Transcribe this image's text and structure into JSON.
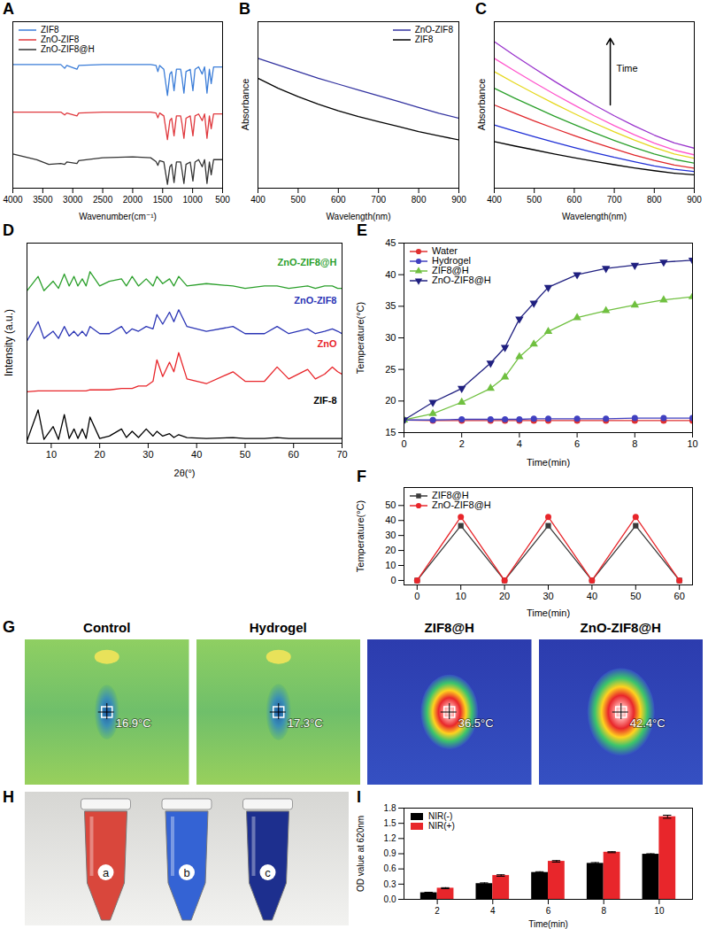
{
  "chart_data": [
    {
      "panel": "A",
      "type": "line",
      "x_label": "Wavenumber(cm⁻¹)",
      "x": [
        4000,
        3600,
        3400,
        3200,
        3135,
        3100,
        2930,
        2900,
        2500,
        2000,
        1700,
        1610,
        1580,
        1550,
        1480,
        1420,
        1380,
        1350,
        1310,
        1270,
        1200,
        1180,
        1145,
        1110,
        1040,
        995,
        960,
        900,
        840,
        800,
        760,
        720,
        690,
        650,
        600,
        500
      ],
      "series": [
        {
          "name": "ZIF8",
          "color": "#3b7dd8",
          "values": [
            2.6,
            2.6,
            2.6,
            2.6,
            2.52,
            2.58,
            2.5,
            2.58,
            2.6,
            2.6,
            2.6,
            2.58,
            2.45,
            2.58,
            2.5,
            1.95,
            2.4,
            2.45,
            2.05,
            2.5,
            2.5,
            2.35,
            2.0,
            2.45,
            2.5,
            2.05,
            2.5,
            2.55,
            2.4,
            2.55,
            2.0,
            2.5,
            2.2,
            2.55,
            2.55,
            2.55
          ]
        },
        {
          "name": "ZnO-ZIF8",
          "color": "#e0393e",
          "values": [
            1.6,
            1.6,
            1.6,
            1.6,
            1.54,
            1.58,
            1.52,
            1.58,
            1.6,
            1.6,
            1.6,
            1.58,
            1.48,
            1.58,
            1.52,
            1.02,
            1.42,
            1.47,
            1.1,
            1.52,
            1.52,
            1.38,
            1.05,
            1.47,
            1.52,
            1.1,
            1.52,
            1.56,
            1.42,
            1.56,
            1.05,
            1.52,
            1.25,
            1.56,
            1.56,
            1.56
          ]
        },
        {
          "name": "ZnO-ZIF8@H",
          "color": "#333333",
          "values": [
            0.72,
            0.6,
            0.5,
            0.52,
            0.5,
            0.55,
            0.52,
            0.58,
            0.64,
            0.66,
            0.64,
            0.56,
            0.48,
            0.58,
            0.55,
            0.08,
            0.45,
            0.5,
            0.12,
            0.55,
            0.55,
            0.4,
            0.1,
            0.5,
            0.55,
            0.15,
            0.55,
            0.6,
            0.45,
            0.6,
            0.1,
            0.55,
            0.28,
            0.6,
            0.6,
            0.6
          ]
        }
      ],
      "xlim": [
        4000,
        500
      ],
      "xticks": [
        4000,
        3500,
        3000,
        2500,
        2000,
        1500,
        1000,
        500
      ],
      "ylim": [
        0,
        3.5
      ],
      "yticks": [],
      "tick_labels": "x",
      "legend": "top-left"
    },
    {
      "panel": "B",
      "type": "line",
      "x_label": "Wavelength(nm)",
      "y_label": "Absorbance",
      "x": [
        400,
        450,
        500,
        550,
        600,
        650,
        700,
        750,
        800,
        850,
        900
      ],
      "series": [
        {
          "name": "ZnO-ZIF8",
          "color": "#3333a0",
          "values": [
            0.78,
            0.74,
            0.7,
            0.66,
            0.625,
            0.59,
            0.555,
            0.52,
            0.485,
            0.45,
            0.42
          ]
        },
        {
          "name": "ZIF8",
          "color": "#000000",
          "values": [
            0.66,
            0.6,
            0.55,
            0.505,
            0.465,
            0.43,
            0.4,
            0.37,
            0.34,
            0.315,
            0.29
          ]
        }
      ],
      "xlim": [
        400,
        900
      ],
      "xticks": [
        400,
        500,
        600,
        700,
        800,
        900
      ],
      "ylim": [
        0,
        1
      ],
      "yticks": [],
      "tick_labels": "x",
      "legend": "top-right"
    },
    {
      "panel": "C",
      "type": "line",
      "x_label": "Wavelength(nm)",
      "y_label": "Absorbance",
      "annotation": "Time",
      "x": [
        400,
        450,
        500,
        550,
        600,
        650,
        700,
        750,
        800,
        850,
        900
      ],
      "series": [
        {
          "color": "#000000",
          "values": [
            0.28,
            0.254,
            0.23,
            0.206,
            0.183,
            0.161,
            0.141,
            0.122,
            0.105,
            0.09,
            0.08
          ]
        },
        {
          "color": "#1f2fd6",
          "values": [
            0.38,
            0.344,
            0.309,
            0.276,
            0.244,
            0.214,
            0.185,
            0.159,
            0.134,
            0.114,
            0.1
          ]
        },
        {
          "color": "#e0262b",
          "values": [
            0.5,
            0.451,
            0.404,
            0.359,
            0.316,
            0.274,
            0.236,
            0.199,
            0.167,
            0.139,
            0.12
          ]
        },
        {
          "color": "#2ca02c",
          "values": [
            0.6,
            0.542,
            0.487,
            0.433,
            0.382,
            0.333,
            0.287,
            0.244,
            0.205,
            0.173,
            0.15
          ]
        },
        {
          "color": "#e6d81e",
          "values": [
            0.7,
            0.633,
            0.569,
            0.507,
            0.448,
            0.391,
            0.338,
            0.289,
            0.244,
            0.206,
            0.18
          ]
        },
        {
          "color": "#ff55cc",
          "values": [
            0.78,
            0.706,
            0.634,
            0.565,
            0.499,
            0.435,
            0.376,
            0.321,
            0.271,
            0.229,
            0.2
          ]
        },
        {
          "color": "#9933cc",
          "values": [
            0.88,
            0.798,
            0.719,
            0.643,
            0.57,
            0.5,
            0.435,
            0.374,
            0.319,
            0.272,
            0.24
          ]
        }
      ],
      "xlim": [
        400,
        900
      ],
      "xticks": [
        400,
        500,
        600,
        700,
        800,
        900
      ],
      "ylim": [
        0,
        1
      ],
      "yticks": [],
      "tick_labels": "x"
    },
    {
      "panel": "D",
      "type": "line",
      "x_label": "2θ(°)",
      "y_label": "Intensity (a.u.)",
      "x": [
        5,
        7.3,
        8.5,
        10.4,
        11.5,
        12.7,
        13.7,
        14.7,
        15.5,
        16.4,
        17.2,
        18,
        20,
        22,
        24.5,
        25.5,
        26.7,
        28,
        29.6,
        31,
        31.8,
        33,
        34.4,
        35.3,
        36.3,
        38,
        42,
        47.5,
        50,
        54,
        56.6,
        59,
        62.9,
        64.5,
        66.4,
        68,
        69.1,
        70
      ],
      "series": [
        {
          "name": "ZnO-ZIF8@H",
          "color": "#2ca02c",
          "values": [
            3.2,
            3.5,
            3.2,
            3.4,
            3.25,
            3.55,
            3.3,
            3.5,
            3.3,
            3.45,
            3.3,
            3.6,
            3.3,
            3.4,
            3.45,
            3.3,
            3.5,
            3.3,
            3.45,
            3.3,
            3.5,
            3.35,
            3.45,
            3.3,
            3.5,
            3.3,
            3.35,
            3.3,
            3.25,
            3.3,
            3.3,
            3.25,
            3.3,
            3.25,
            3.3,
            3.3,
            3.25,
            3.25
          ]
        },
        {
          "name": "ZnO-ZIF8",
          "color": "#2b35b5",
          "values": [
            2.15,
            2.55,
            2.2,
            2.35,
            2.2,
            2.45,
            2.25,
            2.35,
            2.25,
            2.35,
            2.25,
            2.45,
            2.3,
            2.3,
            2.45,
            2.3,
            2.4,
            2.35,
            2.45,
            2.4,
            2.7,
            2.5,
            2.75,
            2.55,
            2.8,
            2.45,
            2.35,
            2.45,
            2.3,
            2.3,
            2.45,
            2.3,
            2.4,
            2.3,
            2.35,
            2.4,
            2.35,
            2.3
          ]
        },
        {
          "name": "ZnO",
          "color": "#e8262b",
          "values": [
            1.08,
            1.1,
            1.1,
            1.1,
            1.1,
            1.1,
            1.1,
            1.1,
            1.1,
            1.1,
            1.1,
            1.12,
            1.12,
            1.12,
            1.15,
            1.15,
            1.15,
            1.2,
            1.2,
            1.3,
            1.75,
            1.4,
            1.7,
            1.5,
            1.9,
            1.35,
            1.25,
            1.5,
            1.3,
            1.3,
            1.6,
            1.35,
            1.55,
            1.35,
            1.45,
            1.6,
            1.5,
            1.45
          ]
        },
        {
          "name": "ZIF-8",
          "color": "#000000",
          "values": [
            0.05,
            0.7,
            0.08,
            0.35,
            0.08,
            0.6,
            0.1,
            0.3,
            0.1,
            0.3,
            0.1,
            0.55,
            0.1,
            0.15,
            0.3,
            0.12,
            0.25,
            0.12,
            0.3,
            0.15,
            0.25,
            0.15,
            0.2,
            0.12,
            0.18,
            0.12,
            0.1,
            0.12,
            0.1,
            0.1,
            0.12,
            0.1,
            0.1,
            0.1,
            0.1,
            0.1,
            0.1,
            0.1
          ]
        }
      ],
      "xlim": [
        5,
        70
      ],
      "xticks": [
        10,
        20,
        30,
        40,
        50,
        60,
        70
      ],
      "ylim": [
        0,
        4.2
      ],
      "yticks": [],
      "tick_labels": "x",
      "legend": "inline"
    },
    {
      "panel": "E",
      "type": "line",
      "x_label": "Time(min)",
      "y_label": "Temperature(°C)",
      "x": [
        0,
        1,
        2,
        3,
        3.5,
        4,
        4.5,
        5,
        6,
        7,
        8,
        9,
        10
      ],
      "series": [
        {
          "name": "Water",
          "color": "#e03030",
          "marker": "circle",
          "values": [
            17,
            16.9,
            16.9,
            16.9,
            16.9,
            16.9,
            16.9,
            16.9,
            16.9,
            16.9,
            16.9,
            16.9,
            16.9
          ]
        },
        {
          "name": "Hydrogel",
          "color": "#4040c0",
          "marker": "circle",
          "values": [
            17,
            17,
            17.1,
            17.1,
            17.1,
            17.1,
            17.2,
            17.2,
            17.2,
            17.2,
            17.3,
            17.3,
            17.3
          ]
        },
        {
          "name": "ZIF8@H",
          "color": "#70c040",
          "marker": "triangle",
          "values": [
            17,
            18,
            19.8,
            22,
            23.8,
            27,
            29,
            31,
            33.2,
            34.3,
            35.2,
            36,
            36.5
          ]
        },
        {
          "name": "ZnO-ZIF8@H",
          "color": "#202080",
          "marker": "triangle-down",
          "values": [
            17,
            19.8,
            22,
            26,
            28.5,
            33,
            35.5,
            38,
            40,
            41,
            41.5,
            42,
            42.3
          ]
        }
      ],
      "xlim": [
        0,
        10
      ],
      "xticks": [
        0,
        2,
        4,
        6,
        8,
        10
      ],
      "ylim": [
        15,
        45
      ],
      "yticks": [
        15,
        20,
        25,
        30,
        35,
        40,
        45
      ],
      "legend": "top-left"
    },
    {
      "panel": "F",
      "type": "line",
      "x_label": "Time(min)",
      "y_label": "Temperature(°C)",
      "x": [
        0,
        10,
        20,
        30,
        40,
        50,
        60
      ],
      "series": [
        {
          "name": "ZIF8@H",
          "color": "#3a3a3a",
          "marker": "square",
          "values": [
            0,
            36.5,
            0,
            36.5,
            0,
            36.5,
            0
          ]
        },
        {
          "name": "ZnO-ZIF8@H",
          "color": "#e8262b",
          "marker": "circle",
          "values": [
            0,
            42.4,
            0,
            42.4,
            0,
            42.4,
            0
          ]
        }
      ],
      "xlim": [
        -3,
        63
      ],
      "xticks": [
        0,
        10,
        20,
        30,
        40,
        50,
        60
      ],
      "ylim": [
        -3,
        62
      ],
      "yticks": [
        0,
        10,
        20,
        30,
        40,
        50
      ],
      "legend": "top-left"
    },
    {
      "panel": "G",
      "type": "thermal",
      "titles": [
        "Control",
        "Hydrogel",
        "ZIF8@H",
        "ZnO-ZIF8@H"
      ],
      "readings": [
        {
          "value": 16.9,
          "label": "16.9°C"
        },
        {
          "value": 17.3,
          "label": "17.3°C"
        },
        {
          "value": 36.5,
          "label": "36.5°C"
        },
        {
          "value": 42.4,
          "label": "42.4°C"
        }
      ]
    },
    {
      "panel": "H",
      "type": "photo",
      "labels": [
        "a",
        "b",
        "c"
      ],
      "colors": [
        "#d9473c",
        "#3463d4",
        "#1d2f8e"
      ]
    },
    {
      "panel": "I",
      "type": "bar",
      "x_label": "Time(min)",
      "y_label": "OD value at 620nm",
      "categories": [
        "2",
        "4",
        "6",
        "8",
        "10"
      ],
      "series": [
        {
          "name": "NIR(-)",
          "color": "#000000",
          "values": [
            0.13,
            0.31,
            0.53,
            0.71,
            0.89
          ],
          "errors": [
            0.01,
            0.015,
            0.015,
            0.015,
            0.01
          ]
        },
        {
          "name": "NIR(+)",
          "color": "#e8262b",
          "values": [
            0.22,
            0.47,
            0.75,
            0.93,
            1.63
          ],
          "errors": [
            0.01,
            0.015,
            0.015,
            0.01,
            0.03
          ]
        }
      ],
      "ylim": [
        0,
        1.8
      ],
      "yticks": [
        {
          "value": 0,
          "label": "0.0"
        },
        0.3,
        0.6,
        0.9,
        1.2,
        1.5,
        1.8
      ],
      "legend": "top-left"
    }
  ]
}
